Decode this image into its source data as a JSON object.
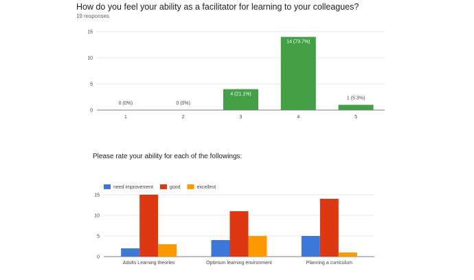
{
  "header": {
    "question": "How do you feel your ability as a facilitator for learning to your colleagues?",
    "responses": "19 responses"
  },
  "chart_data": [
    {
      "type": "bar",
      "title": "How do you feel your ability as a facilitator for learning to your colleagues?",
      "subtitle": "19 responses",
      "categories": [
        "1",
        "2",
        "3",
        "4",
        "5"
      ],
      "values": [
        0,
        0,
        4,
        14,
        1
      ],
      "data_labels": [
        "0 (0%)",
        "0 (0%)",
        "4 (21.1%)",
        "14 (73.7%)",
        "1 (5.3%)"
      ],
      "yticks": [
        0,
        5,
        10,
        15
      ],
      "ylim": [
        0,
        15
      ],
      "grid": true,
      "color": "#43a047"
    },
    {
      "type": "bar",
      "title": "Please rate your ability for each of the followings:",
      "categories": [
        "Adults Learning theories",
        "Optimum learning environment",
        "Planning a curriculum"
      ],
      "series": [
        {
          "name": "need improvement",
          "values": [
            2,
            4,
            5
          ],
          "color": "#3c78d8"
        },
        {
          "name": "good",
          "values": [
            15,
            11,
            14
          ],
          "color": "#dc3912"
        },
        {
          "name": "excellent",
          "values": [
            3,
            5,
            1
          ],
          "color": "#ff9900"
        }
      ],
      "yticks": [
        0,
        5,
        10,
        15
      ],
      "ylim": [
        0,
        16
      ],
      "grid": true,
      "legend": "top-left"
    }
  ]
}
